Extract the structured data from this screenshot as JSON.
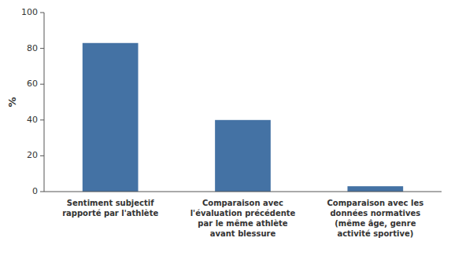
{
  "chart_data": {
    "type": "bar",
    "categories": [
      "Sentiment subjectif\nrapporté par l'athlète",
      "Comparaison avec\nl'évaluation précédente\npar le même athlète\navant blessure",
      "Comparaison avec les\ndonnées normatives\n(même âge, genre\nactivité sportive)"
    ],
    "values": [
      83,
      40,
      3
    ],
    "color": "#4472a4",
    "ylabel": "%",
    "ylim": [
      0,
      100
    ],
    "yticks": [
      0,
      20,
      40,
      60,
      80,
      100
    ],
    "grid": false
  }
}
